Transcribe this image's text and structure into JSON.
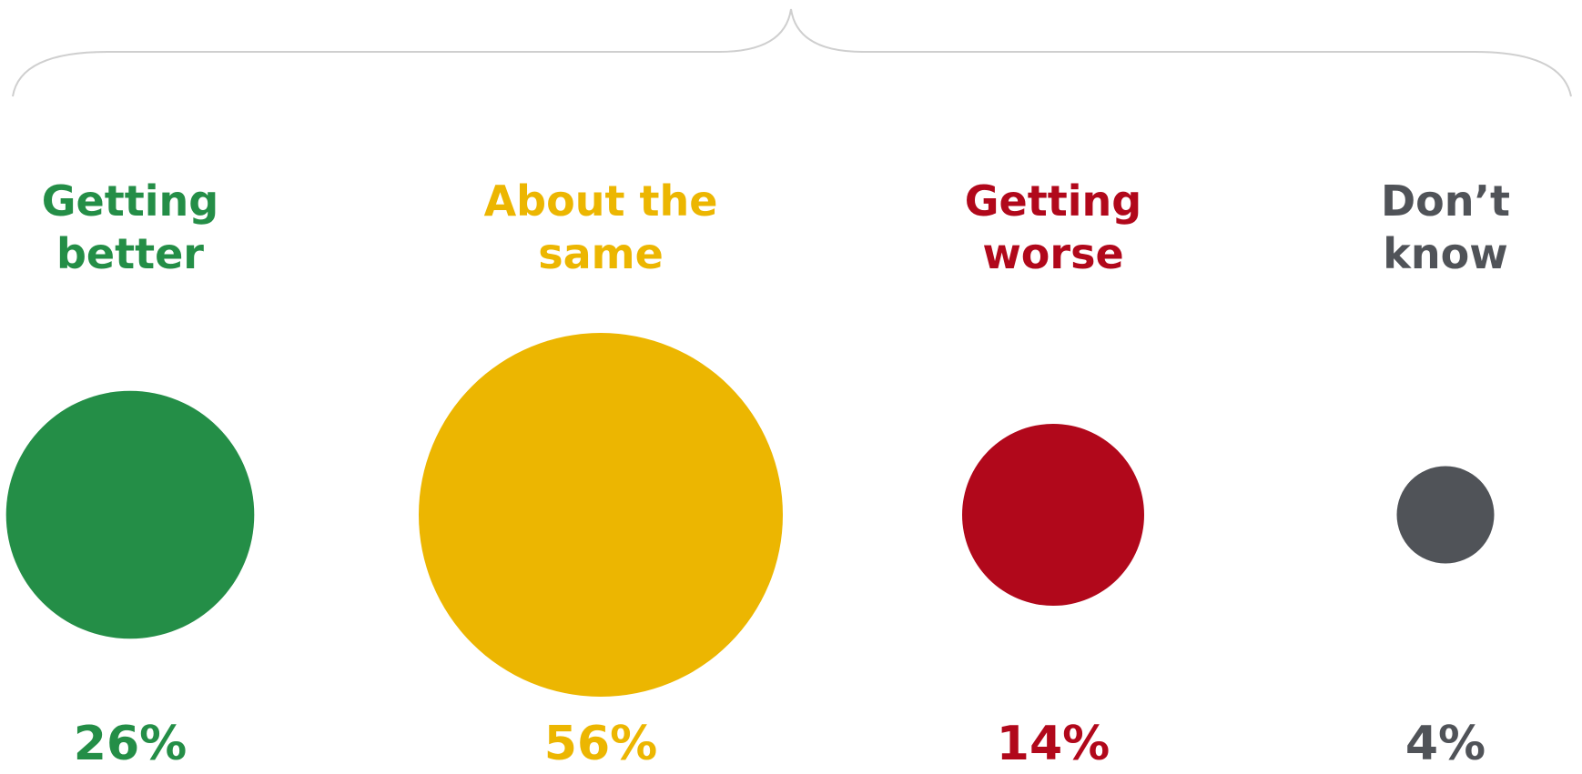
{
  "chart_data": {
    "type": "bubble",
    "title": "",
    "categories": [
      {
        "label_lines": [
          "Getting",
          "better"
        ],
        "value": 26,
        "value_label": "26%",
        "color": "#248e47"
      },
      {
        "label_lines": [
          "About the",
          "same"
        ],
        "value": 56,
        "value_label": "56%",
        "color": "#ecb601"
      },
      {
        "label_lines": [
          "Getting",
          "worse"
        ],
        "value": 14,
        "value_label": "14%",
        "color": "#b1081b"
      },
      {
        "label_lines": [
          "Don’t",
          "know"
        ],
        "value": 4,
        "value_label": "4%",
        "color": "#505358"
      }
    ],
    "unit": "%",
    "bracket_color": "#cfcfcf"
  }
}
